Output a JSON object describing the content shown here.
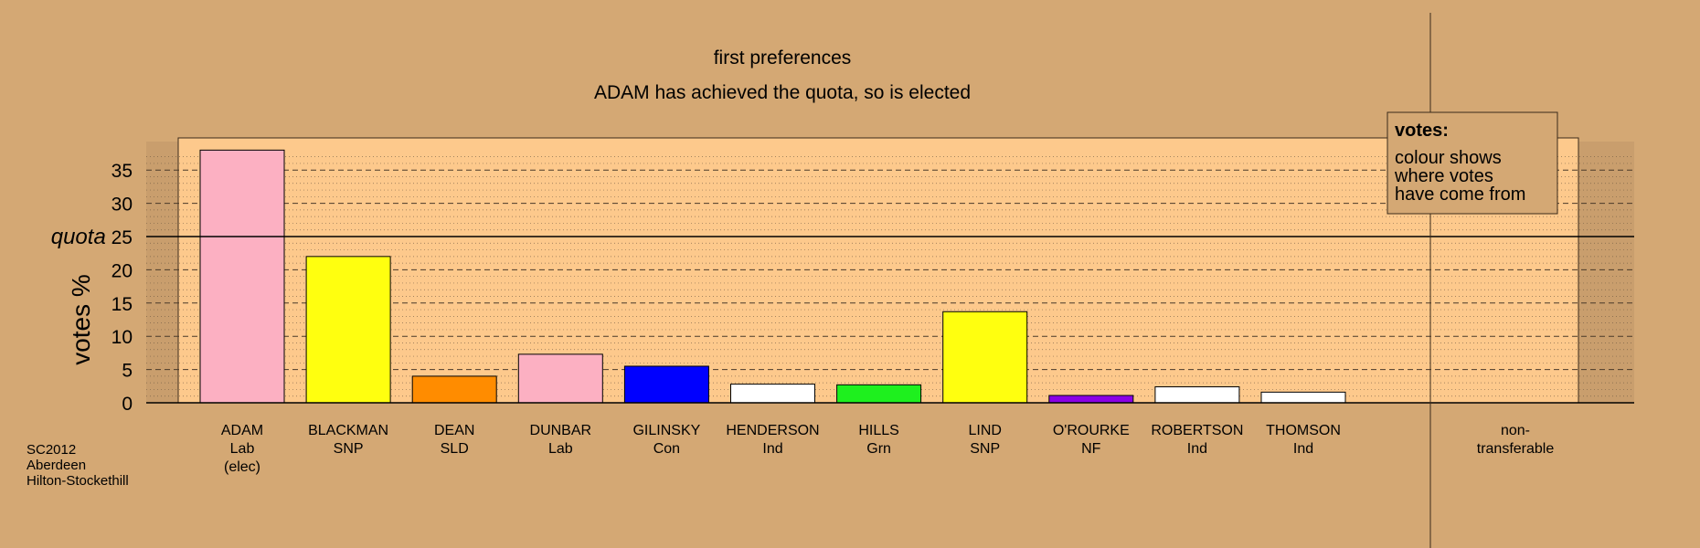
{
  "chart_data": {
    "type": "bar",
    "title": "first preferences",
    "subtitle": "ADAM has achieved the quota, so is elected",
    "ylabel": "votes %",
    "ylim": [
      0,
      40
    ],
    "yticks": [
      0,
      5,
      10,
      15,
      20,
      25,
      30,
      35
    ],
    "quota": {
      "label": "quota",
      "value": 25
    },
    "grid": "dashed horizontal every 5, dotted every 1",
    "categories": [
      {
        "name": "ADAM",
        "party": "Lab",
        "note": "(elec)",
        "value": 38,
        "color": "#fcb0c2"
      },
      {
        "name": "BLACKMAN",
        "party": "SNP",
        "note": "",
        "value": 22,
        "color": "#ffff0f"
      },
      {
        "name": "DEAN",
        "party": "SLD",
        "note": "",
        "value": 4,
        "color": "#ff8c00"
      },
      {
        "name": "DUNBAR",
        "party": "Lab",
        "note": "",
        "value": 7.3,
        "color": "#fcb0c2"
      },
      {
        "name": "GILINSKY",
        "party": "Con",
        "note": "",
        "value": 5.5,
        "color": "#0000ff"
      },
      {
        "name": "HENDERSON",
        "party": "Ind",
        "note": "",
        "value": 2.8,
        "color": "#ffffff"
      },
      {
        "name": "HILLS",
        "party": "Grn",
        "note": "",
        "value": 2.7,
        "color": "#1ef01e"
      },
      {
        "name": "LIND",
        "party": "SNP",
        "note": "",
        "value": 13.7,
        "color": "#ffff0f"
      },
      {
        "name": "O'ROURKE",
        "party": "NF",
        "note": "",
        "value": 1.1,
        "color": "#8a00e6"
      },
      {
        "name": "ROBERTSON",
        "party": "Ind",
        "note": "",
        "value": 2.4,
        "color": "#ffffff"
      },
      {
        "name": "THOMSON",
        "party": "Ind",
        "note": "",
        "value": 1.6,
        "color": "#ffffff"
      }
    ],
    "nontransferable": {
      "line1": "non-",
      "line2": "transferable",
      "value": 0
    },
    "legend": {
      "position": "top-right",
      "title": "votes:",
      "lines": [
        "colour shows",
        "where votes",
        "have come from"
      ]
    }
  },
  "footer": [
    "SC2012",
    "Aberdeen",
    "Hilton-Stockethill"
  ],
  "colors": {
    "background": "#d4a874",
    "plot_area": "#fdc98c",
    "side_area": "#c99e6d",
    "quota_line": "#000000"
  }
}
